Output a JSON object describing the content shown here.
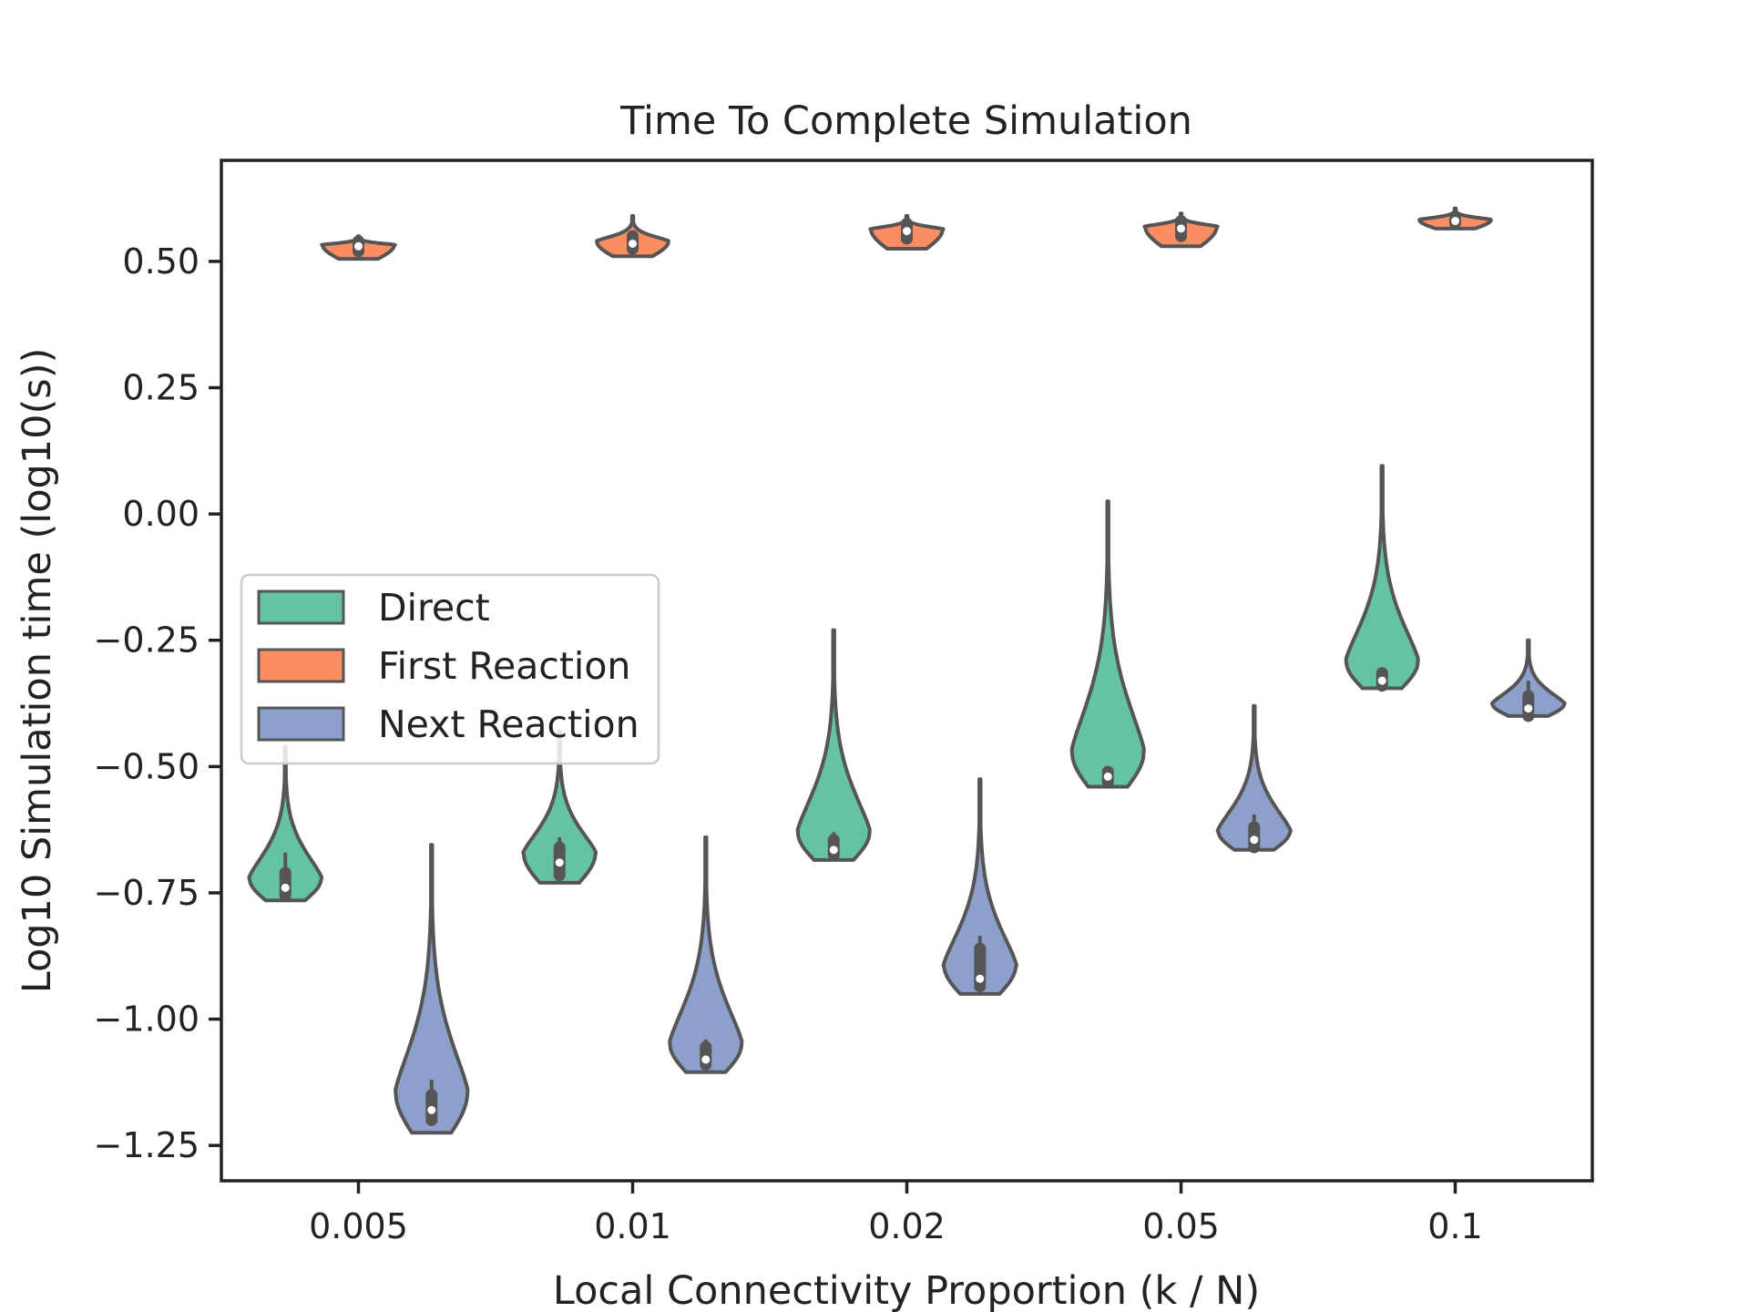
{
  "chart_data": {
    "type": "violin",
    "title": "Time To Complete Simulation",
    "xlabel": "Local Connectivity Proportion (k / N)",
    "ylabel": "Log10 Simulation time (log10(s))",
    "categories": [
      "0.005",
      "0.01",
      "0.02",
      "0.05",
      "0.1"
    ],
    "ylim": [
      -1.32,
      0.7
    ],
    "yticks": [
      -1.25,
      -1.0,
      -0.75,
      -0.5,
      -0.25,
      0.0,
      0.25,
      0.5
    ],
    "ytick_labels": [
      "−1.25",
      "−1.00",
      "−0.75",
      "−0.50",
      "−0.25",
      "0.00",
      "0.25",
      "0.50"
    ],
    "grid": false,
    "legend_position": "center-left",
    "series": [
      {
        "name": "Direct",
        "color": "#66c2a5",
        "distributions": [
          {
            "min": -0.765,
            "max": -0.46,
            "q1": -0.755,
            "median": -0.74,
            "q3": -0.71,
            "wlo": -0.76,
            "whi": -0.67
          },
          {
            "min": -0.73,
            "max": -0.43,
            "q1": -0.715,
            "median": -0.69,
            "q3": -0.66,
            "wlo": -0.72,
            "whi": -0.64
          },
          {
            "min": -0.685,
            "max": -0.23,
            "q1": -0.675,
            "median": -0.665,
            "q3": -0.645,
            "wlo": -0.685,
            "whi": -0.63
          },
          {
            "min": -0.54,
            "max": 0.025,
            "q1": -0.53,
            "median": -0.52,
            "q3": -0.51,
            "wlo": -0.535,
            "whi": -0.5
          },
          {
            "min": -0.345,
            "max": 0.095,
            "q1": -0.34,
            "median": -0.33,
            "q3": -0.315,
            "wlo": -0.345,
            "whi": -0.305
          }
        ]
      },
      {
        "name": "First Reaction",
        "color": "#fc8d62",
        "distributions": [
          {
            "min": 0.505,
            "max": 0.55,
            "q1": 0.52,
            "median": 0.53,
            "q3": 0.54,
            "wlo": 0.515,
            "whi": 0.545
          },
          {
            "min": 0.51,
            "max": 0.59,
            "q1": 0.525,
            "median": 0.535,
            "q3": 0.55,
            "wlo": 0.515,
            "whi": 0.56
          },
          {
            "min": 0.525,
            "max": 0.59,
            "q1": 0.545,
            "median": 0.56,
            "q3": 0.575,
            "wlo": 0.535,
            "whi": 0.585
          },
          {
            "min": 0.53,
            "max": 0.595,
            "q1": 0.55,
            "median": 0.565,
            "q3": 0.58,
            "wlo": 0.54,
            "whi": 0.59
          },
          {
            "min": 0.565,
            "max": 0.605,
            "q1": 0.575,
            "median": 0.58,
            "q3": 0.585,
            "wlo": 0.57,
            "whi": 0.59
          }
        ]
      },
      {
        "name": "Next Reaction",
        "color": "#8da0cb",
        "distributions": [
          {
            "min": -1.225,
            "max": -0.655,
            "q1": -1.2,
            "median": -1.18,
            "q3": -1.15,
            "wlo": -1.21,
            "whi": -1.12
          },
          {
            "min": -1.105,
            "max": -0.64,
            "q1": -1.09,
            "median": -1.08,
            "q3": -1.055,
            "wlo": -1.1,
            "whi": -1.04
          },
          {
            "min": -0.95,
            "max": -0.525,
            "q1": -0.935,
            "median": -0.92,
            "q3": -0.86,
            "wlo": -0.945,
            "whi": -0.835
          },
          {
            "min": -0.665,
            "max": -0.38,
            "q1": -0.66,
            "median": -0.645,
            "q3": -0.62,
            "wlo": -0.66,
            "whi": -0.595
          },
          {
            "min": -0.4,
            "max": -0.25,
            "q1": -0.4,
            "median": -0.385,
            "q3": -0.36,
            "wlo": -0.4,
            "whi": -0.33
          }
        ]
      }
    ]
  }
}
